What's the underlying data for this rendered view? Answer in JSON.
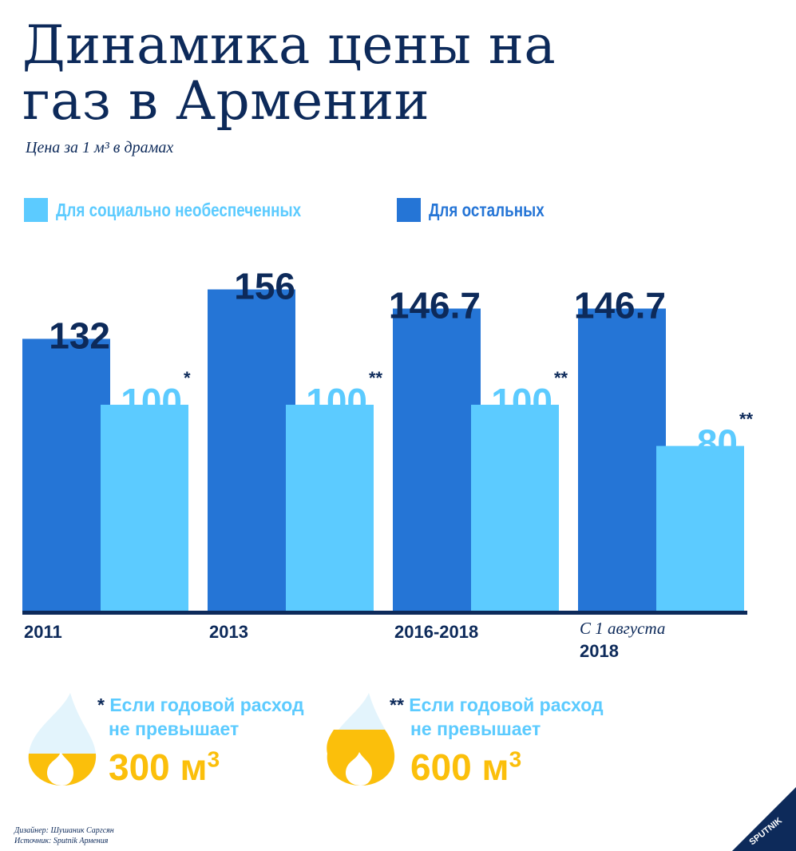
{
  "title": {
    "line1": "Динамика цены на",
    "line2": "газ в Армении"
  },
  "subtitle": "Цена за 1 м³ в драмах",
  "legend": [
    {
      "label": "Для социально необеспеченных",
      "color": "#5ccbff"
    },
    {
      "label": "Для остальных",
      "color": "#2575d6"
    }
  ],
  "chart_data": {
    "type": "bar",
    "title": "Динамика цены на газ в Армении",
    "subtitle": "Цена за 1 м³ в драмах",
    "categories": [
      "2011",
      "2013",
      "2016-2018",
      "С 1 августа 2018"
    ],
    "series": [
      {
        "name": "Для остальных",
        "color": "#2575d6",
        "values": [
          132,
          156,
          146.7,
          146.7
        ],
        "labels": [
          "132",
          "156",
          "146.7",
          "146.7"
        ]
      },
      {
        "name": "Для социально необеспеченных",
        "color": "#5ccbff",
        "values": [
          100,
          100,
          100,
          80
        ],
        "labels": [
          "100",
          "100",
          "100",
          "80"
        ],
        "footnote_marks": [
          "*",
          "**",
          "**",
          "**"
        ]
      }
    ],
    "ylim": [
      0,
      160
    ],
    "xlabel": "",
    "ylabel": "",
    "legend_position": "top-left",
    "grid": false
  },
  "x_labels": [
    {
      "line1": "2011",
      "line2": ""
    },
    {
      "line1": "2013",
      "line2": ""
    },
    {
      "line1": "2016-2018",
      "line2": ""
    },
    {
      "line1": "С 1 августа",
      "line2": "2018"
    }
  ],
  "notes": [
    {
      "mark": "*",
      "line1": "Если годовой расход",
      "line2": "не превышает",
      "amount": "300 м",
      "amount_sup": "3",
      "icon": "flame-icon"
    },
    {
      "mark": "**",
      "line1": "Если годовой расход",
      "line2": "не превышает",
      "amount": "600 м",
      "amount_sup": "3",
      "icon": "flame-icon"
    }
  ],
  "credits": {
    "designer": "Дизайнер: Шушаник Саргсян",
    "source": "Источник: Sputnik Армения"
  },
  "logo": {
    "text": "SPUTNIK",
    "icon": "sputnik-logo-icon"
  },
  "colors": {
    "dark_bar": "#2575d6",
    "light_bar": "#5ccbff",
    "text": "#0d2a5a",
    "accent": "#fbbf0b"
  }
}
